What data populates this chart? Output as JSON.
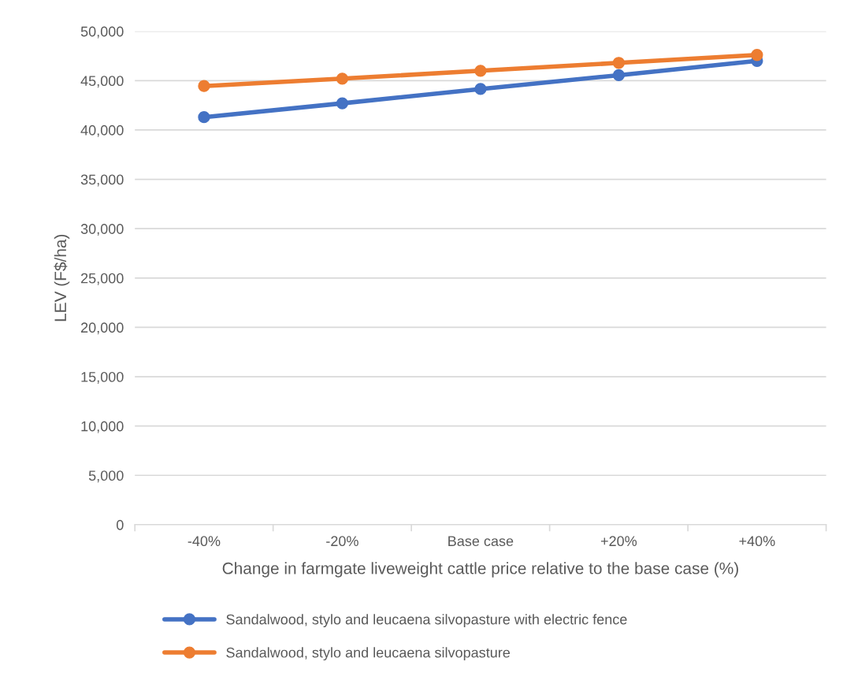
{
  "chart_data": {
    "type": "line",
    "xlabel": "Change in farmgate liveweight cattle price relative to the base case (%)",
    "ylabel": "LEV (F$/ha)",
    "categories": [
      "-40%",
      "-20%",
      "Base case",
      "+20%",
      "+40%"
    ],
    "series": [
      {
        "name": "Sandalwood, stylo and leucaena silvopasture with electric fence",
        "color": "#4472c4",
        "values": [
          41300,
          42700,
          44150,
          45550,
          47000
        ]
      },
      {
        "name": "Sandalwood, stylo and leucaena silvopasture",
        "color": "#ed7d31",
        "values": [
          44450,
          45200,
          46000,
          46800,
          47600
        ]
      }
    ],
    "ylim": [
      0,
      50000
    ],
    "yticks": [
      {
        "value": 0,
        "label": "0"
      },
      {
        "value": 5000,
        "label": "5,000"
      },
      {
        "value": 10000,
        "label": "10,000"
      },
      {
        "value": 15000,
        "label": "15,000"
      },
      {
        "value": 20000,
        "label": "20,000"
      },
      {
        "value": 25000,
        "label": "25,000"
      },
      {
        "value": 30000,
        "label": "30,000"
      },
      {
        "value": 35000,
        "label": "35,000"
      },
      {
        "value": 40000,
        "label": "40,000"
      },
      {
        "value": 45000,
        "label": "45,000"
      },
      {
        "value": 50000,
        "label": "50,000"
      }
    ],
    "grid": "y",
    "legend": "bottom",
    "marker": "circle",
    "line_style": "solid"
  }
}
